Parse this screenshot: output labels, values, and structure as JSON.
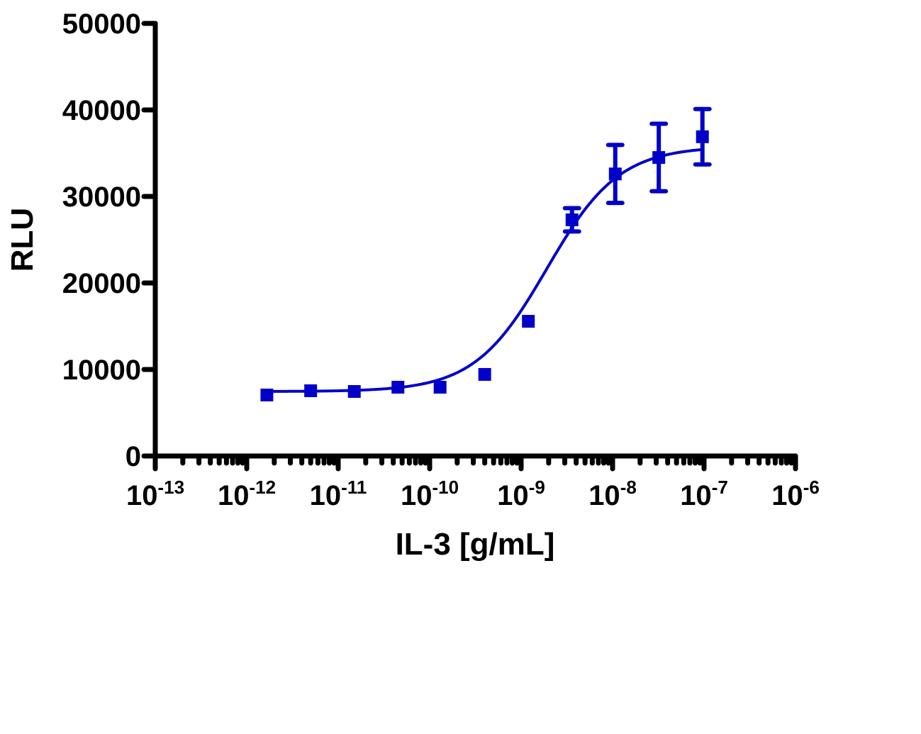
{
  "chart_data": {
    "type": "scatter",
    "title": "",
    "xlabel": "IL-3 [g/mL]",
    "ylabel": "RLU",
    "xscale": "log",
    "xlim": [
      1e-13,
      1e-06
    ],
    "ylim": [
      0,
      50000
    ],
    "grid": false,
    "legend": null,
    "x_ticks": [
      {
        "base": "10",
        "exp": "-13",
        "value": 1e-13
      },
      {
        "base": "10",
        "exp": "-12",
        "value": 1e-12
      },
      {
        "base": "10",
        "exp": "-11",
        "value": 1e-11
      },
      {
        "base": "10",
        "exp": "-10",
        "value": 1e-10
      },
      {
        "base": "10",
        "exp": "-9",
        "value": 1e-09
      },
      {
        "base": "10",
        "exp": "-8",
        "value": 1e-08
      },
      {
        "base": "10",
        "exp": "-7",
        "value": 1e-07
      },
      {
        "base": "10",
        "exp": "-6",
        "value": 1e-06
      }
    ],
    "y_ticks": [
      0,
      10000,
      20000,
      30000,
      40000,
      50000
    ],
    "y_tick_labels": [
      "0",
      "10000",
      "20000",
      "30000",
      "40000",
      "50000"
    ],
    "series": [
      {
        "name": "IL-3",
        "color": "#0000c8",
        "marker": "square",
        "fit": "sigmoidal dose-response (4PL)",
        "x": [
          1.66e-12,
          5e-12,
          1.5e-11,
          4.5e-11,
          1.3e-10,
          4e-10,
          1.2e-09,
          3.6e-09,
          1.07e-08,
          3.2e-08,
          9.6e-08
        ],
        "y": [
          7050,
          7540,
          7460,
          7950,
          7950,
          9430,
          15570,
          27300,
          32600,
          34500,
          36900
        ],
        "error": [
          0,
          0,
          0,
          0,
          0,
          0,
          0,
          1350,
          3350,
          3900,
          3200
        ]
      }
    ],
    "fit_params": {
      "bottom": 7450,
      "top": 35800,
      "log_ec50": -8.72,
      "hill_slope": 1.1
    }
  }
}
